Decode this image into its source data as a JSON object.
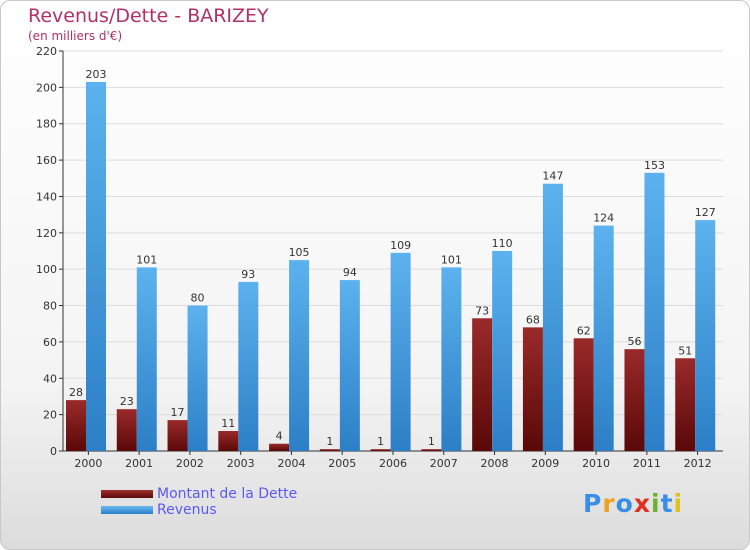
{
  "chart_data": {
    "type": "bar",
    "title": "Revenus/Dette - BARIZEY",
    "subtitle": "(en milliers d'€)",
    "categories": [
      "2000",
      "2001",
      "2002",
      "2003",
      "2004",
      "2005",
      "2006",
      "2007",
      "2008",
      "2009",
      "2010",
      "2011",
      "2012"
    ],
    "series": [
      {
        "name": "Montant de la Dette",
        "values": [
          28,
          23,
          17,
          11,
          4,
          1,
          1,
          1,
          73,
          68,
          62,
          56,
          51
        ],
        "color": "#7a1a1a"
      },
      {
        "name": "Revenus",
        "values": [
          203,
          101,
          80,
          93,
          105,
          94,
          109,
          101,
          110,
          147,
          124,
          153,
          127
        ],
        "color": "#4aa3e6"
      }
    ],
    "ylim": [
      0,
      220
    ],
    "yticks": [
      0,
      20,
      40,
      60,
      80,
      100,
      120,
      140,
      160,
      180,
      200,
      220
    ],
    "grid": true,
    "legend_position": "bottom-left"
  },
  "logo": {
    "letters": [
      "P",
      "r",
      "o",
      "x",
      "i",
      "t",
      "i"
    ],
    "colors": [
      "#3a8ee6",
      "#f0a020",
      "#3a8ee6",
      "#e03020",
      "#70b030",
      "#3a8ee6",
      "#e0c020"
    ]
  }
}
